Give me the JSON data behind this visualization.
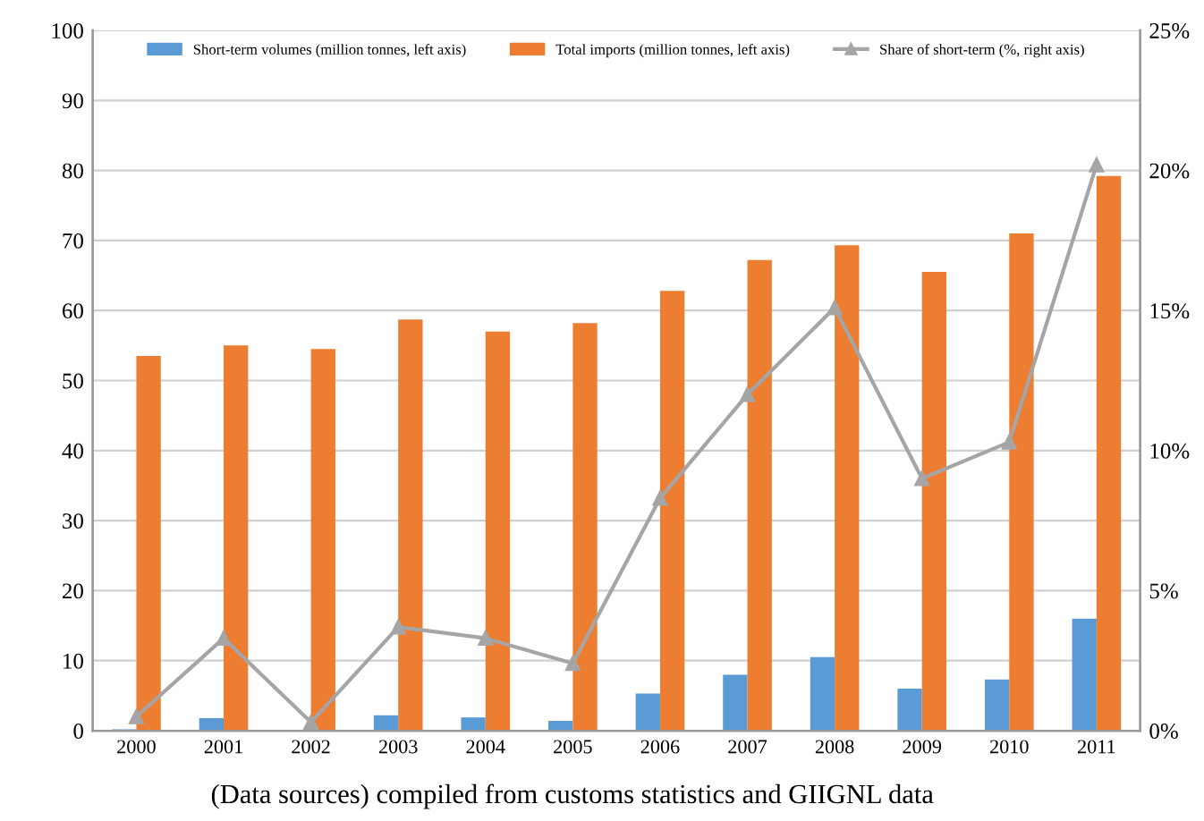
{
  "chart_data": {
    "type": "bar",
    "categories": [
      "2000",
      "2001",
      "2002",
      "2003",
      "2004",
      "2005",
      "2006",
      "2007",
      "2008",
      "2009",
      "2010",
      "2011"
    ],
    "series": [
      {
        "name": "Short-term volumes (million tonnes, left axis)",
        "color": "#5b9bd5",
        "values": [
          0.2,
          1.8,
          0.1,
          2.2,
          1.9,
          1.4,
          5.3,
          8.0,
          10.5,
          6.0,
          7.3,
          16.0
        ]
      },
      {
        "name": "Total imports (million tonnes, left axis)",
        "color": "#ed7d31",
        "values": [
          53.5,
          55.0,
          54.5,
          58.7,
          57.0,
          58.2,
          62.8,
          67.2,
          69.3,
          65.5,
          71.0,
          79.2
        ]
      },
      {
        "name": "Share of short-term (%, right axis)",
        "type": "line",
        "axis": "y2",
        "color": "#a5a5a5",
        "marker": "triangle",
        "values": [
          0.5,
          3.3,
          0.3,
          3.7,
          3.3,
          2.4,
          8.3,
          12.0,
          15.1,
          9.0,
          10.3,
          20.2
        ]
      }
    ],
    "ylim": [
      0,
      100
    ],
    "yticks": [
      0,
      10,
      20,
      30,
      40,
      50,
      60,
      70,
      80,
      90,
      100
    ],
    "y2lim": [
      0,
      25
    ],
    "y2ticks": [
      {
        "value": 0,
        "label": "0%"
      },
      {
        "value": 5,
        "label": "5%"
      },
      {
        "value": 10,
        "label": "10%"
      },
      {
        "value": 15,
        "label": "15%"
      },
      {
        "value": 20,
        "label": "20%"
      },
      {
        "value": 25,
        "label": "25%"
      }
    ],
    "grid": "y",
    "legend": "top",
    "annotations": [
      "(Data sources) compiled from customs statistics and GIIGNL data"
    ]
  }
}
